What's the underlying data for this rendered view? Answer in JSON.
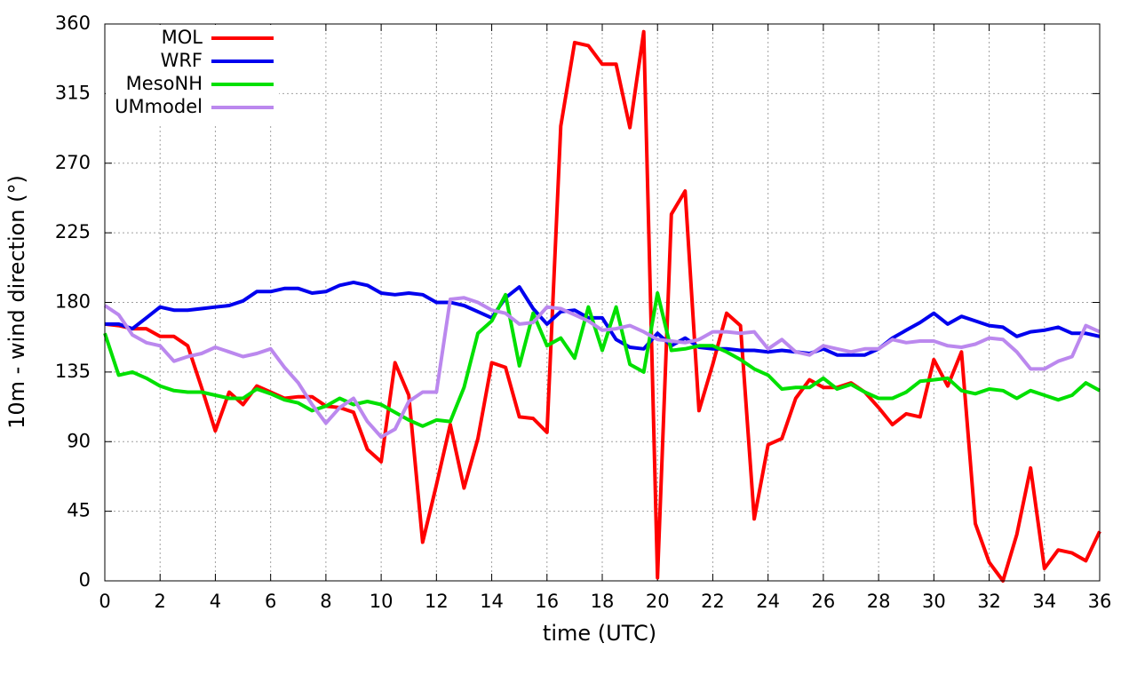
{
  "chart_data": {
    "type": "line",
    "xlabel": "time (UTC)",
    "ylabel": "10m - wind direction (°)",
    "x": [
      0,
      0.5,
      1,
      1.5,
      2,
      2.5,
      3,
      3.5,
      4,
      4.5,
      5,
      5.5,
      6,
      6.5,
      7,
      7.5,
      8,
      8.5,
      9,
      9.5,
      10,
      10.5,
      11,
      11.5,
      12,
      12.5,
      13,
      13.5,
      14,
      14.5,
      15,
      15.5,
      16,
      16.5,
      17,
      17.5,
      18,
      18.5,
      19,
      19.5,
      20,
      20.5,
      21,
      21.5,
      22,
      22.5,
      23,
      23.5,
      24,
      24.5,
      25,
      25.5,
      26,
      26.5,
      27,
      27.5,
      28,
      28.5,
      29,
      29.5,
      30,
      30.5,
      31,
      31.5,
      32,
      32.5,
      33,
      33.5,
      34,
      34.5,
      35,
      35.5,
      36
    ],
    "series": [
      {
        "name": "MOL",
        "color": "#ff0000",
        "values": [
          166,
          165,
          163,
          163,
          158,
          158,
          152,
          125,
          97,
          122,
          114,
          126,
          122,
          118,
          119,
          119,
          113,
          112,
          109,
          85,
          77,
          141,
          120,
          25,
          62,
          101,
          60,
          92,
          141,
          138,
          106,
          105,
          96,
          294,
          348,
          346,
          334,
          334,
          293,
          355,
          2,
          237,
          252,
          110,
          140,
          173,
          165,
          40,
          88,
          92,
          118,
          130,
          125,
          125,
          128,
          122,
          112,
          101,
          108,
          106,
          143,
          126,
          148,
          37,
          12,
          0,
          30,
          73,
          8,
          20,
          18,
          13,
          32
        ]
      },
      {
        "name": "WRF",
        "color": "#0000ee",
        "values": [
          166,
          166,
          163,
          170,
          177,
          175,
          175,
          176,
          177,
          178,
          181,
          187,
          187,
          189,
          189,
          186,
          187,
          191,
          193,
          191,
          186,
          185,
          186,
          185,
          180,
          180,
          178,
          174,
          170,
          183,
          190,
          176,
          166,
          174,
          175,
          170,
          170,
          156,
          151,
          150,
          160,
          152,
          157,
          151,
          150,
          150,
          149,
          149,
          148,
          149,
          148,
          147,
          150,
          146,
          146,
          146,
          150,
          157,
          162,
          167,
          173,
          166,
          171,
          168,
          165,
          164,
          158,
          161,
          162,
          164,
          160,
          160,
          158
        ]
      },
      {
        "name": "MesoNH",
        "color": "#00e000",
        "values": [
          160,
          133,
          135,
          131,
          126,
          123,
          122,
          122,
          120,
          118,
          118,
          124,
          121,
          117,
          115,
          110,
          113,
          118,
          114,
          116,
          114,
          109,
          104,
          100,
          104,
          103,
          125,
          160,
          168,
          185,
          139,
          173,
          152,
          157,
          144,
          177,
          149,
          177,
          140,
          135,
          186,
          149,
          150,
          152,
          152,
          148,
          143,
          137,
          133,
          124,
          125,
          125,
          131,
          124,
          127,
          122,
          118,
          118,
          122,
          129,
          130,
          131,
          123,
          121,
          124,
          123,
          118,
          123,
          120,
          117,
          120,
          128,
          123
        ]
      },
      {
        "name": "UMmodel",
        "color": "#bb88ee",
        "values": [
          178,
          172,
          159,
          154,
          152,
          142,
          145,
          147,
          151,
          148,
          145,
          147,
          150,
          138,
          128,
          114,
          102,
          112,
          118,
          103,
          93,
          98,
          116,
          122,
          122,
          182,
          183,
          180,
          175,
          173,
          166,
          167,
          177,
          176,
          172,
          168,
          162,
          163,
          165,
          161,
          156,
          155,
          154,
          156,
          161,
          161,
          160,
          161,
          150,
          156,
          148,
          146,
          152,
          150,
          148,
          150,
          150,
          156,
          154,
          155,
          155,
          152,
          151,
          153,
          157,
          156,
          148,
          137,
          137,
          142,
          145,
          165,
          161
        ]
      }
    ],
    "xlim": [
      0,
      36
    ],
    "xticks": [
      0,
      2,
      4,
      6,
      8,
      10,
      12,
      14,
      16,
      18,
      20,
      22,
      24,
      26,
      28,
      30,
      32,
      34,
      36
    ],
    "ylim": [
      0,
      360
    ],
    "yticks": [
      0,
      45,
      90,
      135,
      180,
      225,
      270,
      315,
      360
    ],
    "grid": true,
    "legend": "top-left"
  }
}
